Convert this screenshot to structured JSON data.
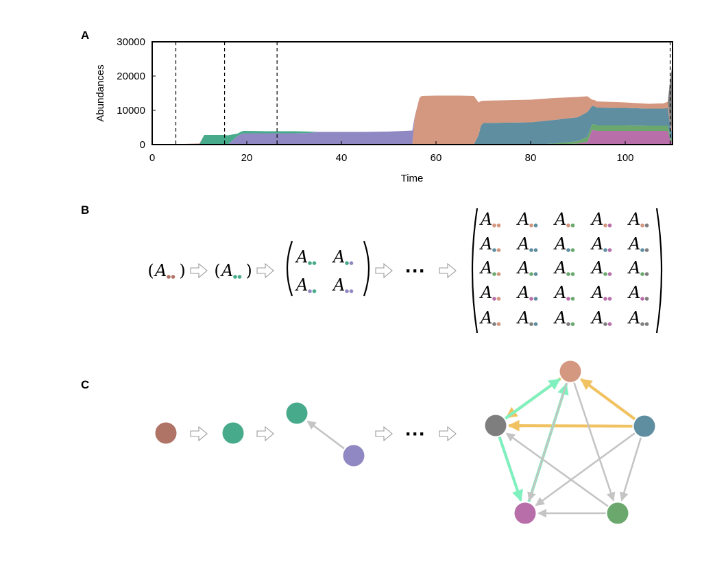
{
  "panels": {
    "a": {
      "label": "A"
    },
    "b": {
      "label": "B"
    },
    "c": {
      "label": "C"
    }
  },
  "colors": {
    "brown": "#b07467",
    "teal": "#47ab8b",
    "lavender": "#9088c2",
    "salmon": "#d4977f",
    "blue": "#5f8ea0",
    "green": "#6aa86d",
    "magenta": "#b86fa9",
    "gray": "#7e7e7e",
    "edge_gray": "#c4c4c4",
    "edge_orange": "#f1c261",
    "edge_mint": "#80f0bf"
  },
  "math": {
    "symbol": "A",
    "ellipsis": "···"
  },
  "chart_data": {
    "type": "area",
    "xlabel": "Time",
    "ylabel": "Abundances",
    "xlim": [
      0,
      110
    ],
    "ylim": [
      0,
      30000
    ],
    "x_ticks": [
      "0",
      "20",
      "40",
      "60",
      "80",
      "100"
    ],
    "y_ticks": [
      "0",
      "10000",
      "20000",
      "30000"
    ],
    "x_tick_values": [
      0,
      20,
      40,
      60,
      80,
      100
    ],
    "y_tick_values": [
      0,
      10000,
      20000,
      30000
    ],
    "dashed_vlines": [
      5,
      15.3,
      26.4,
      109.5
    ],
    "stack_order": [
      "magenta",
      "green",
      "blue",
      "salmon",
      "lavender",
      "teal",
      "brown",
      "gray"
    ],
    "x": [
      0,
      5,
      10,
      11,
      15,
      16,
      18,
      19,
      19.5,
      24,
      27,
      30,
      33,
      35,
      38,
      45,
      50,
      55,
      55.5,
      56.5,
      57,
      60,
      65,
      68,
      69,
      69.5,
      70,
      80,
      85,
      90,
      92,
      93,
      93.5,
      94,
      100,
      105,
      107,
      108,
      109,
      109.5,
      110
    ],
    "series": [
      {
        "color": "brown",
        "values": [
          0,
          150,
          200,
          0,
          0,
          0,
          0,
          0,
          0,
          0,
          0,
          0,
          0,
          0,
          0,
          0,
          0,
          0,
          0,
          0,
          0,
          0,
          0,
          0,
          0,
          0,
          0,
          0,
          0,
          0,
          0,
          0,
          0,
          0,
          0,
          0,
          0,
          0,
          0,
          0,
          0
        ]
      },
      {
        "color": "teal",
        "values": [
          0,
          0,
          100,
          2800,
          2800,
          2700,
          700,
          700,
          700,
          600,
          600,
          600,
          400,
          0,
          0,
          0,
          0,
          0,
          0,
          0,
          0,
          0,
          0,
          0,
          0,
          0,
          0,
          0,
          0,
          0,
          0,
          0,
          0,
          0,
          0,
          0,
          0,
          0,
          0,
          0,
          0
        ]
      },
      {
        "color": "lavender",
        "values": [
          0,
          0,
          0,
          0,
          0,
          0,
          2500,
          3200,
          3300,
          3300,
          3300,
          3300,
          3400,
          3700,
          3700,
          3700,
          3800,
          3900,
          200,
          0,
          0,
          0,
          0,
          0,
          0,
          0,
          0,
          0,
          0,
          0,
          0,
          0,
          0,
          0,
          0,
          0,
          0,
          0,
          0,
          0,
          0
        ]
      },
      {
        "color": "salmon",
        "values": [
          0,
          0,
          0,
          0,
          0,
          0,
          0,
          0,
          0,
          0,
          0,
          0,
          0,
          0,
          0,
          0,
          0,
          200,
          8000,
          13600,
          14200,
          14300,
          14300,
          14200,
          9500,
          7200,
          6500,
          6600,
          6400,
          5900,
          4600,
          1800,
          1800,
          1800,
          1600,
          1400,
          1500,
          1500,
          1800,
          1000,
          900
        ]
      },
      {
        "color": "blue",
        "values": [
          0,
          0,
          0,
          0,
          0,
          0,
          0,
          0,
          0,
          0,
          0,
          0,
          0,
          0,
          0,
          0,
          0,
          0,
          0,
          0,
          0,
          0,
          0,
          0,
          2800,
          5500,
          6300,
          6500,
          6900,
          7000,
          7200,
          5300,
          5300,
          5200,
          5100,
          5000,
          5000,
          5000,
          5200,
          3500,
          1800
        ]
      },
      {
        "color": "green",
        "values": [
          0,
          0,
          0,
          0,
          0,
          0,
          0,
          0,
          0,
          0,
          0,
          0,
          0,
          0,
          0,
          0,
          0,
          0,
          0,
          0,
          0,
          0,
          0,
          0,
          0,
          0,
          0,
          0,
          300,
          700,
          1500,
          1700,
          1700,
          1600,
          1600,
          1500,
          1500,
          1500,
          1500,
          1000,
          500
        ]
      },
      {
        "color": "magenta",
        "values": [
          0,
          0,
          0,
          0,
          0,
          0,
          0,
          0,
          0,
          0,
          0,
          0,
          0,
          0,
          0,
          0,
          0,
          0,
          0,
          0,
          0,
          0,
          0,
          0,
          0,
          0,
          0,
          0,
          0,
          300,
          800,
          4300,
          4200,
          4000,
          4000,
          4000,
          4000,
          4000,
          4000,
          1500,
          500
        ]
      },
      {
        "color": "gray",
        "values": [
          0,
          0,
          0,
          0,
          0,
          0,
          0,
          0,
          0,
          0,
          0,
          0,
          0,
          0,
          0,
          0,
          0,
          0,
          0,
          0,
          0,
          0,
          0,
          0,
          0,
          0,
          0,
          0,
          0,
          0,
          0,
          0,
          0,
          0,
          0,
          0,
          0,
          0,
          0,
          12000,
          20000
        ]
      }
    ]
  },
  "matrix_sequence": [
    {
      "order": [
        "brown"
      ]
    },
    {
      "order": [
        "teal"
      ]
    },
    {
      "order": [
        "teal",
        "lavender"
      ]
    },
    {
      "order": [
        "salmon",
        "blue",
        "green",
        "magenta",
        "gray"
      ]
    }
  ],
  "network_sequence": [
    {
      "nodes": [
        "brown"
      ],
      "edges": []
    },
    {
      "nodes": [
        "teal"
      ],
      "edges": []
    },
    {
      "nodes": [
        "teal",
        "lavender"
      ],
      "edges": [
        {
          "from": "lavender",
          "to": "teal",
          "color": "edge_gray"
        }
      ]
    },
    {
      "nodes": [
        "salmon",
        "blue",
        "green",
        "magenta",
        "gray"
      ],
      "edges": [
        {
          "from": "salmon",
          "to": "gray",
          "color": "edge_orange"
        },
        {
          "from": "blue",
          "to": "salmon",
          "color": "edge_orange"
        },
        {
          "from": "blue",
          "to": "gray",
          "color": "edge_orange"
        },
        {
          "from": "gray",
          "to": "salmon",
          "color": "edge_mint"
        },
        {
          "from": "gray",
          "to": "magenta",
          "color": "edge_mint"
        },
        {
          "from": "magenta",
          "to": "salmon",
          "color": "edge_mint"
        },
        {
          "from": "salmon",
          "to": "green",
          "color": "edge_gray"
        },
        {
          "from": "salmon",
          "to": "magenta",
          "color": "edge_gray"
        },
        {
          "from": "blue",
          "to": "green",
          "color": "edge_gray"
        },
        {
          "from": "blue",
          "to": "magenta",
          "color": "edge_gray"
        },
        {
          "from": "green",
          "to": "gray",
          "color": "edge_gray"
        },
        {
          "from": "green",
          "to": "magenta",
          "color": "edge_gray"
        }
      ]
    }
  ]
}
